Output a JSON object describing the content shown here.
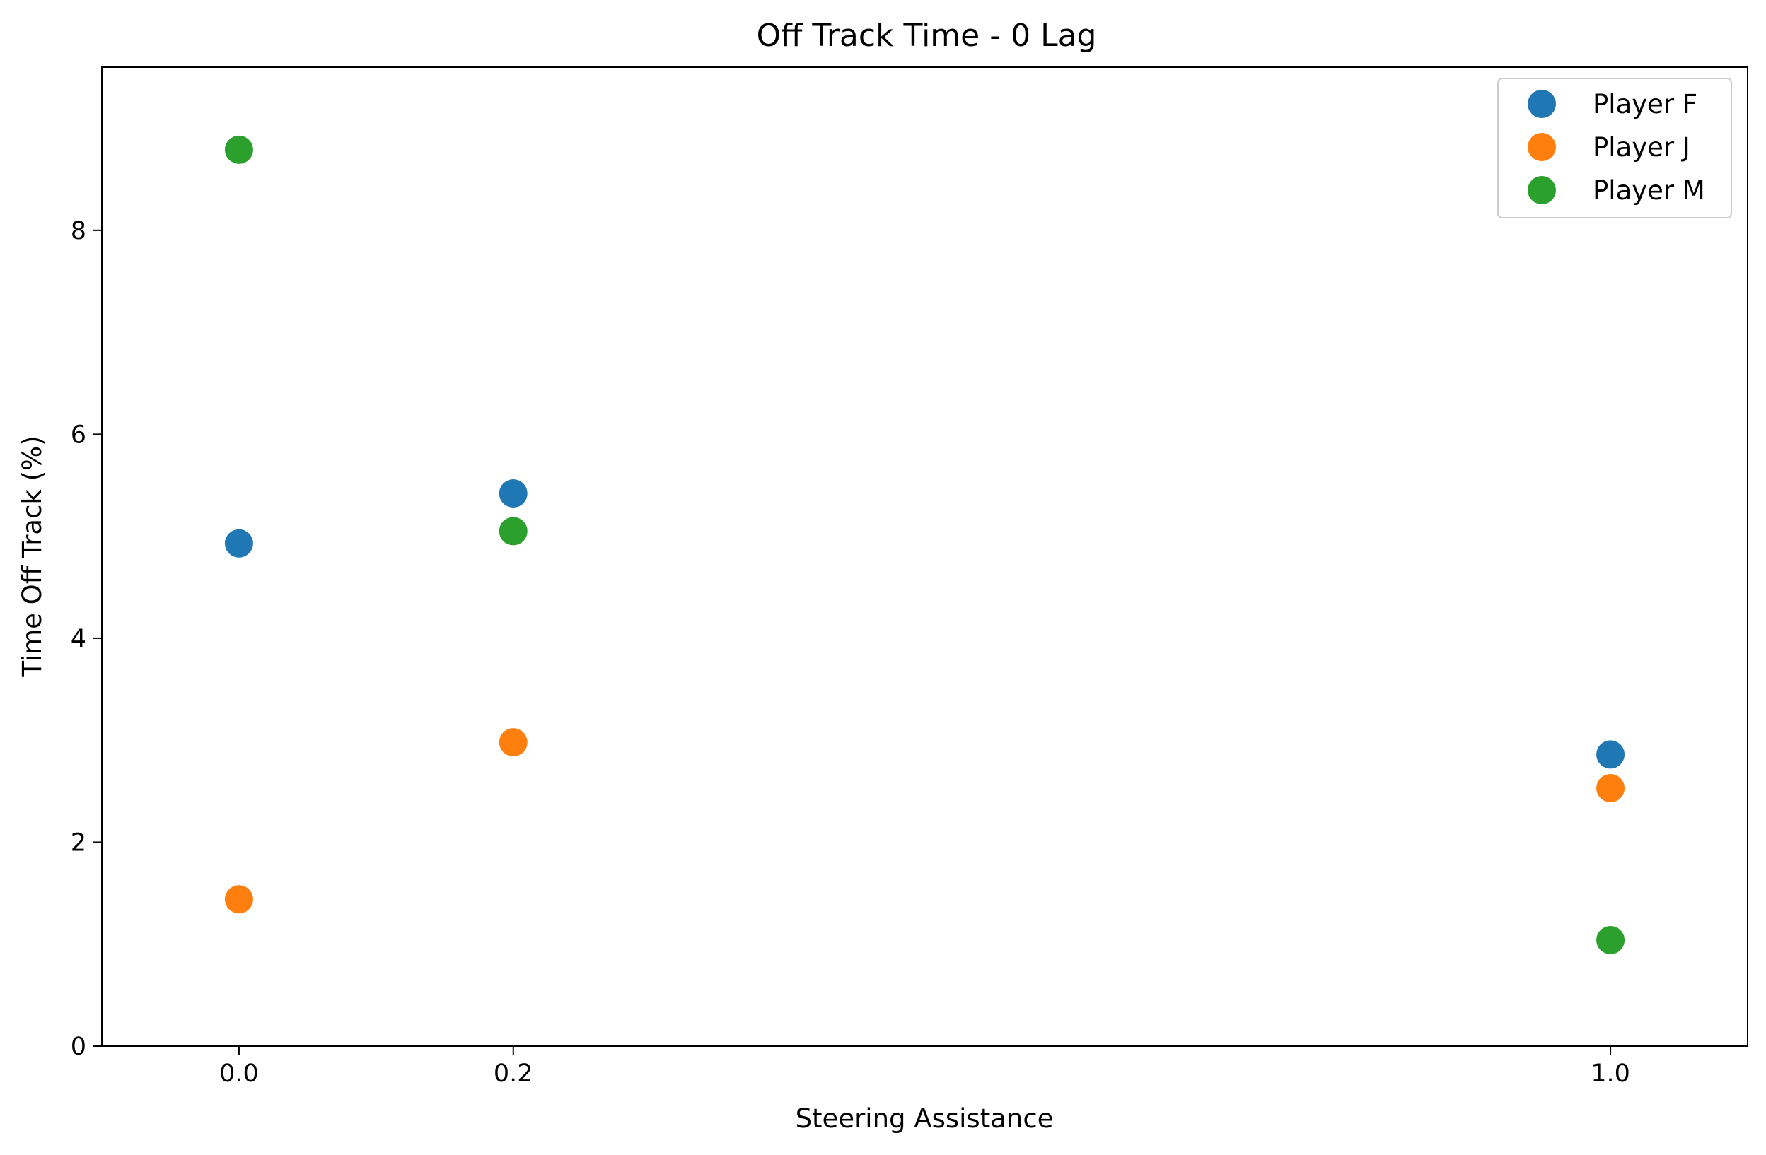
{
  "chart_data": {
    "type": "scatter",
    "title": "Off Track Time - 0 Lag",
    "xlabel": "Steering Assistance",
    "ylabel": "Time Off Track (%)",
    "xlim": [
      -0.1,
      1.1
    ],
    "ylim": [
      0,
      9.6
    ],
    "x_ticks": [
      0.0,
      0.2,
      1.0
    ],
    "x_tick_labels": [
      "0.0",
      "0.2",
      "1.0"
    ],
    "y_ticks": [
      0,
      2,
      4,
      6,
      8
    ],
    "y_tick_labels": [
      "0",
      "2",
      "4",
      "6",
      "8"
    ],
    "grid": false,
    "legend_position": "top-right",
    "series": [
      {
        "name": "Player F",
        "color": "#1f77b4",
        "x": [
          0.0,
          0.2,
          1.0
        ],
        "y": [
          4.93,
          5.42,
          2.86
        ]
      },
      {
        "name": "Player J",
        "color": "#ff7f0e",
        "x": [
          0.0,
          0.2,
          1.0
        ],
        "y": [
          1.44,
          2.98,
          2.53
        ]
      },
      {
        "name": "Player M",
        "color": "#2ca02c",
        "x": [
          0.0,
          0.2,
          1.0
        ],
        "y": [
          8.79,
          5.05,
          1.04
        ]
      }
    ]
  }
}
